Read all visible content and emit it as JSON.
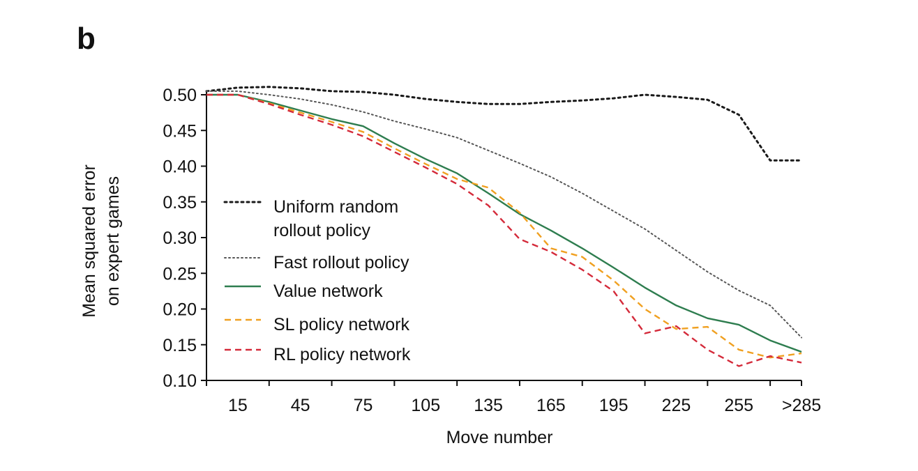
{
  "panel_label": "b",
  "chart_data": {
    "type": "line",
    "title": "",
    "xlabel": "Move number",
    "ylabel": [
      "Mean squared error",
      "on expert games"
    ],
    "x_tick_labels": [
      "15",
      "45",
      "75",
      "105",
      "135",
      "165",
      "195",
      "225",
      "255",
      ">285"
    ],
    "y_tick_labels": [
      "0.50",
      "0.45",
      "0.40",
      "0.35",
      "0.30",
      "0.25",
      "0.20",
      "0.15",
      "0.10"
    ],
    "ylim": [
      0.1,
      0.51
    ],
    "xlim": [
      0,
      285
    ],
    "grid": false,
    "legend_position": "center-left",
    "series": [
      {
        "name": "Uniform random rollout policy",
        "legend_lines": [
          "Uniform random",
          "rollout policy"
        ],
        "color": "#1a1a1a",
        "style": "dotted-heavy",
        "x": [
          0,
          15,
          30,
          45,
          60,
          75,
          90,
          105,
          120,
          135,
          150,
          165,
          180,
          195,
          210,
          225,
          240,
          255,
          270,
          285
        ],
        "values": [
          0.505,
          0.51,
          0.511,
          0.509,
          0.505,
          0.504,
          0.5,
          0.494,
          0.49,
          0.487,
          0.487,
          0.49,
          0.492,
          0.495,
          0.5,
          0.497,
          0.493,
          0.472,
          0.408,
          0.408
        ]
      },
      {
        "name": "Fast rollout policy",
        "legend_lines": [
          "Fast rollout policy"
        ],
        "color": "#555555",
        "style": "dotted-light",
        "x": [
          0,
          15,
          30,
          45,
          60,
          75,
          90,
          105,
          120,
          135,
          150,
          165,
          180,
          195,
          210,
          225,
          240,
          255,
          270,
          285
        ],
        "values": [
          0.505,
          0.505,
          0.5,
          0.494,
          0.486,
          0.476,
          0.463,
          0.452,
          0.44,
          0.422,
          0.404,
          0.385,
          0.362,
          0.337,
          0.312,
          0.282,
          0.252,
          0.226,
          0.205,
          0.16
        ]
      },
      {
        "name": "Value network",
        "legend_lines": [
          "Value network"
        ],
        "color": "#2e7d4f",
        "style": "solid",
        "x": [
          0,
          15,
          30,
          45,
          60,
          75,
          90,
          105,
          120,
          135,
          150,
          165,
          180,
          195,
          210,
          225,
          240,
          255,
          270,
          285
        ],
        "values": [
          0.5,
          0.5,
          0.49,
          0.478,
          0.466,
          0.456,
          0.432,
          0.41,
          0.39,
          0.362,
          0.333,
          0.31,
          0.285,
          0.258,
          0.23,
          0.205,
          0.187,
          0.178,
          0.156,
          0.14
        ]
      },
      {
        "name": "SL policy network",
        "legend_lines": [
          "SL policy network"
        ],
        "color": "#f0a020",
        "style": "dashed",
        "x": [
          0,
          15,
          30,
          45,
          60,
          75,
          90,
          105,
          120,
          135,
          150,
          165,
          180,
          195,
          210,
          225,
          240,
          255,
          270,
          285
        ],
        "values": [
          0.5,
          0.5,
          0.488,
          0.475,
          0.462,
          0.448,
          0.425,
          0.403,
          0.382,
          0.37,
          0.335,
          0.285,
          0.273,
          0.24,
          0.2,
          0.172,
          0.175,
          0.143,
          0.132,
          0.138
        ]
      },
      {
        "name": "RL policy network",
        "legend_lines": [
          "RL policy network"
        ],
        "color": "#d42a3a",
        "style": "dashed",
        "x": [
          0,
          15,
          30,
          45,
          60,
          75,
          90,
          105,
          120,
          135,
          150,
          165,
          180,
          195,
          210,
          225,
          240,
          255,
          270,
          285
        ],
        "values": [
          0.5,
          0.5,
          0.487,
          0.472,
          0.458,
          0.442,
          0.42,
          0.398,
          0.375,
          0.345,
          0.298,
          0.28,
          0.255,
          0.225,
          0.166,
          0.176,
          0.143,
          0.12,
          0.134,
          0.125
        ]
      }
    ]
  }
}
